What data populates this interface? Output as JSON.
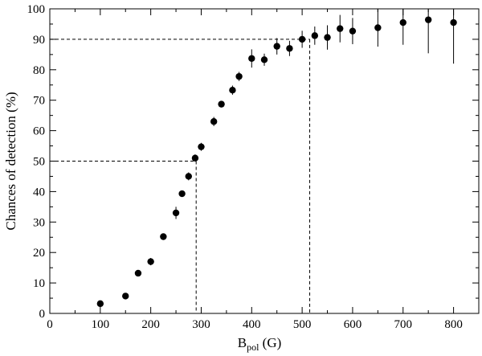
{
  "chart_data": {
    "type": "scatter",
    "xlabel": {
      "main": "B",
      "sub": "pol",
      "unit": " (G)"
    },
    "ylabel": "Chances of detection (%)",
    "xlim": [
      0,
      850
    ],
    "ylim": [
      0,
      100
    ],
    "x_ticks": [
      0,
      100,
      200,
      300,
      400,
      500,
      600,
      700,
      800
    ],
    "y_ticks": [
      0,
      10,
      20,
      30,
      40,
      50,
      60,
      70,
      80,
      90,
      100
    ],
    "grid": false,
    "series": [
      {
        "points": [
          {
            "x": 100,
            "y": 3.2,
            "err": 0
          },
          {
            "x": 150,
            "y": 5.7,
            "err": 0
          },
          {
            "x": 175,
            "y": 13.2,
            "err": 1.0
          },
          {
            "x": 200,
            "y": 17.0,
            "err": 1.2
          },
          {
            "x": 225,
            "y": 25.2,
            "err": 0.8
          },
          {
            "x": 250,
            "y": 33.0,
            "err": 2.0
          },
          {
            "x": 262,
            "y": 39.3,
            "err": 1.0
          },
          {
            "x": 275,
            "y": 45.0,
            "err": 1.3
          },
          {
            "x": 288,
            "y": 51.0,
            "err": 1.2
          },
          {
            "x": 300,
            "y": 54.7,
            "err": 1.3
          },
          {
            "x": 325,
            "y": 63.0,
            "err": 1.5
          },
          {
            "x": 340,
            "y": 68.7,
            "err": 1.0
          },
          {
            "x": 362,
            "y": 73.3,
            "err": 1.5
          },
          {
            "x": 375,
            "y": 77.8,
            "err": 1.5
          },
          {
            "x": 400,
            "y": 83.7,
            "err": 3.0
          },
          {
            "x": 425,
            "y": 83.3,
            "err": 2.0
          },
          {
            "x": 450,
            "y": 87.7,
            "err": 2.7
          },
          {
            "x": 475,
            "y": 87.0,
            "err": 2.5
          },
          {
            "x": 500,
            "y": 90.0,
            "err": 2.8
          },
          {
            "x": 525,
            "y": 91.2,
            "err": 3.0
          },
          {
            "x": 550,
            "y": 90.6,
            "err": 4.0
          },
          {
            "x": 575,
            "y": 93.5,
            "err": 4.5
          },
          {
            "x": 600,
            "y": 92.7,
            "err": 4.3
          },
          {
            "x": 650,
            "y": 93.8,
            "err": 6.2
          },
          {
            "x": 700,
            "y": 95.5,
            "err": 7.3
          },
          {
            "x": 750,
            "y": 96.4,
            "err": 11.0
          },
          {
            "x": 800,
            "y": 95.5,
            "err": 13.5
          }
        ]
      }
    ],
    "reference_lines": [
      {
        "x": 290,
        "y": 50
      },
      {
        "x": 515,
        "y": 90
      }
    ]
  }
}
